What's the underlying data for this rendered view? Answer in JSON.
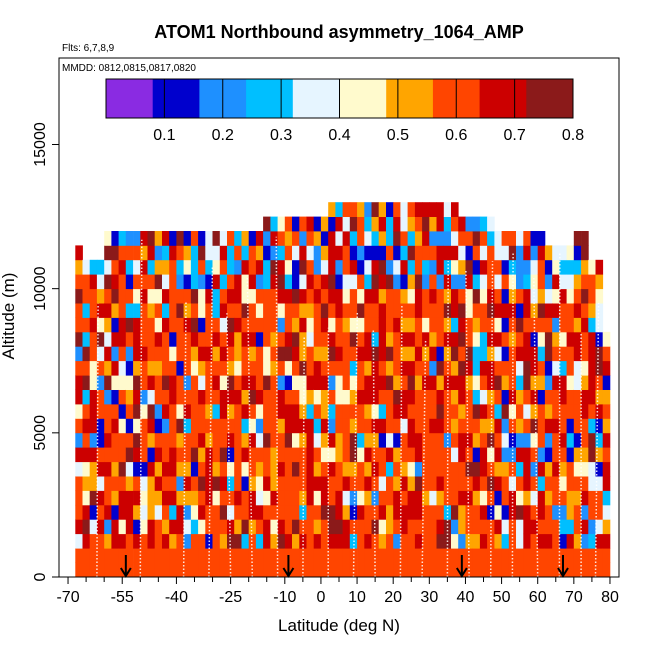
{
  "chart_data": {
    "type": "heatmap",
    "title": "ATOM1 Northbound asymmetry_1064_AMP",
    "flights_text": "Flts: 6,7,8,9",
    "mmdd_text": "MMDD: 0812,0815,0817,0820",
    "xlabel": "Latitude (deg N)",
    "ylabel": "Altitude (m)",
    "xlim": [
      -70,
      85
    ],
    "ylim": [
      0,
      18000
    ],
    "x_tick_values": [
      -70,
      -55,
      -40,
      -25,
      -10,
      0,
      10,
      20,
      30,
      40,
      50,
      60,
      70,
      80
    ],
    "x_tick_labels": [
      "-70",
      "-55",
      "-40",
      "-25",
      "-10",
      "0",
      "10",
      "20",
      "30",
      "40",
      "50",
      "60",
      "70",
      "80"
    ],
    "x_minor_ticks": [
      -65,
      -60,
      -50,
      -45,
      -35,
      -30,
      -20,
      -15,
      -5,
      5,
      15,
      25,
      35,
      45,
      55,
      65,
      75,
      85
    ],
    "y_tick_values": [
      0,
      5000,
      10000,
      15000
    ],
    "y_tick_labels": [
      "0",
      "5000",
      "10000",
      "15000"
    ],
    "colorbar": {
      "range": [
        0,
        0.8
      ],
      "tick_values": [
        0.1,
        0.2,
        0.3,
        0.4,
        0.5,
        0.6,
        0.7,
        0.8
      ],
      "tick_labels": [
        "0.1",
        "0.2",
        "0.3",
        "0.4",
        "0.5",
        "0.6",
        "0.7",
        "0.8"
      ],
      "colors": [
        "#8a2be2",
        "#0000cd",
        "#1e90ff",
        "#00bfff",
        "#e6f5ff",
        "#fffacd",
        "#ffa500",
        "#ff4500",
        "#cc0000",
        "#8b1a1a"
      ]
    },
    "arrows_latitude": [
      -54,
      -9,
      39,
      67
    ],
    "heatmap": {
      "lat_bin_width": 2,
      "alt_bin_height": 500,
      "dominant_value": 0.6,
      "note": "Gridded asymmetry values 0-0.8 by latitude (-70 to 80) and altitude (0-13000 m); mostly 0.55-0.7 with low-value (blue) streaks at high latitudes"
    }
  }
}
